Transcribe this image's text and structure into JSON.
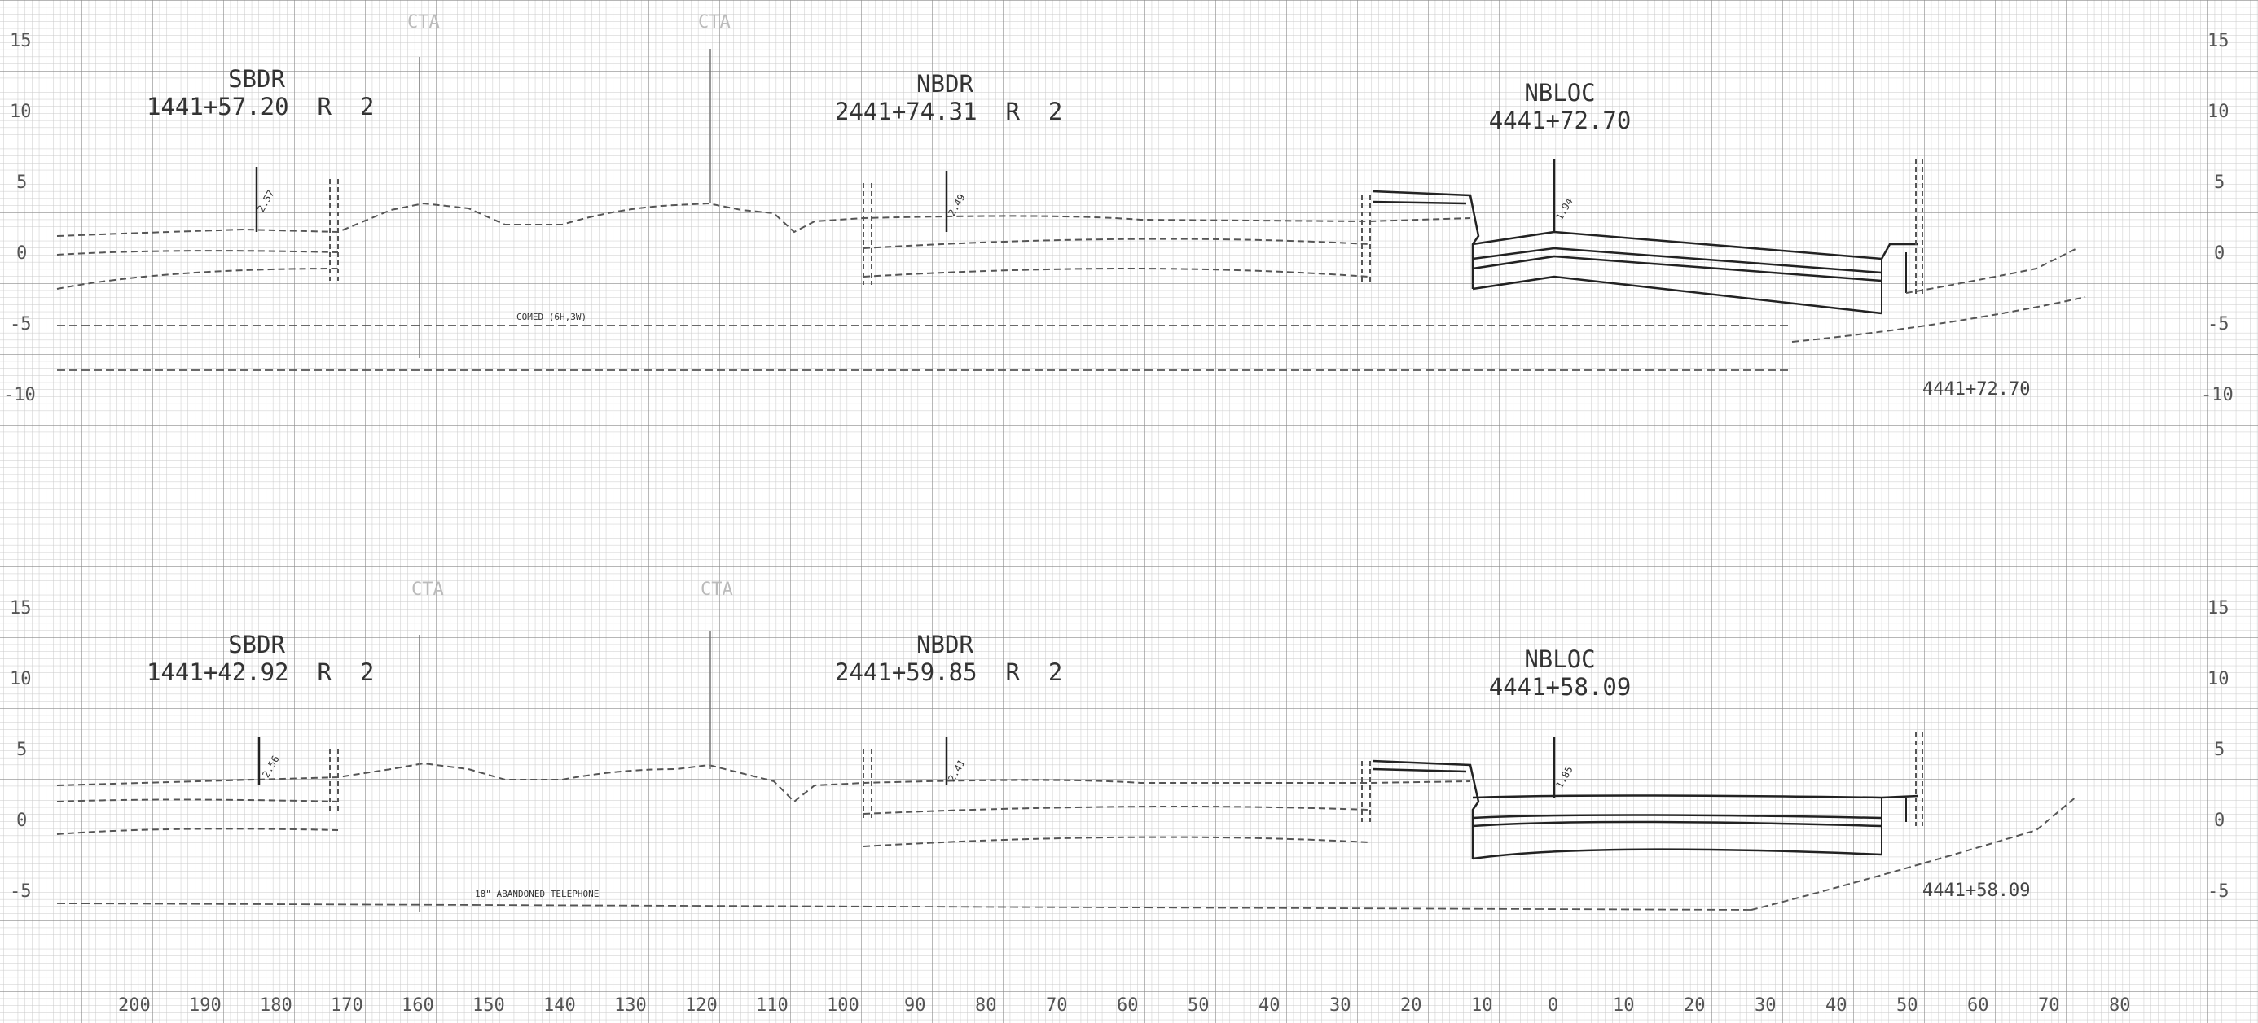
{
  "elevations_upper": [
    "15",
    "10",
    "5",
    "0",
    "-5",
    "-10"
  ],
  "elevations_lower": [
    "15",
    "10",
    "5",
    "0",
    "-5"
  ],
  "offset_axis": [
    "200",
    "190",
    "180",
    "170",
    "160",
    "150",
    "140",
    "130",
    "120",
    "110",
    "100",
    "90",
    "80",
    "70",
    "60",
    "50",
    "40",
    "30",
    "20",
    "10",
    "0",
    "10",
    "20",
    "30",
    "40",
    "50",
    "60",
    "70",
    "80"
  ],
  "upper": {
    "sbdr": {
      "name": "SBDR",
      "station": "1441+57.20  R  2"
    },
    "nbdr": {
      "name": "NBDR",
      "station": "2441+74.31  R  2"
    },
    "nbloc": {
      "name": "NBLOC",
      "station": "4441+72.70"
    },
    "cta_1": "CTA",
    "cta_2": "CTA",
    "utility": "COMED (6H,3W)",
    "stamp": "4441+72.70",
    "dim_sbdr": "2.57",
    "dim_nbdr": "2.49",
    "dim_nbloc": "1.94"
  },
  "lower": {
    "sbdr": {
      "name": "SBDR",
      "station": "1441+42.92  R  2"
    },
    "nbdr": {
      "name": "NBDR",
      "station": "2441+59.85  R  2"
    },
    "nbloc": {
      "name": "NBLOC",
      "station": "4441+58.09"
    },
    "cta_1": "CTA",
    "cta_2": "CTA",
    "utility": "18\" ABANDONED TELEPHONE",
    "stamp": "4441+58.09",
    "dim_sbdr": "2.56",
    "dim_nbdr": "2.41",
    "dim_nbloc": "1.85"
  },
  "colors": {
    "grid_minor": "#c9c9c9",
    "grid_major": "#8a8a8a",
    "line": "#222222",
    "dashed": "#555555"
  }
}
